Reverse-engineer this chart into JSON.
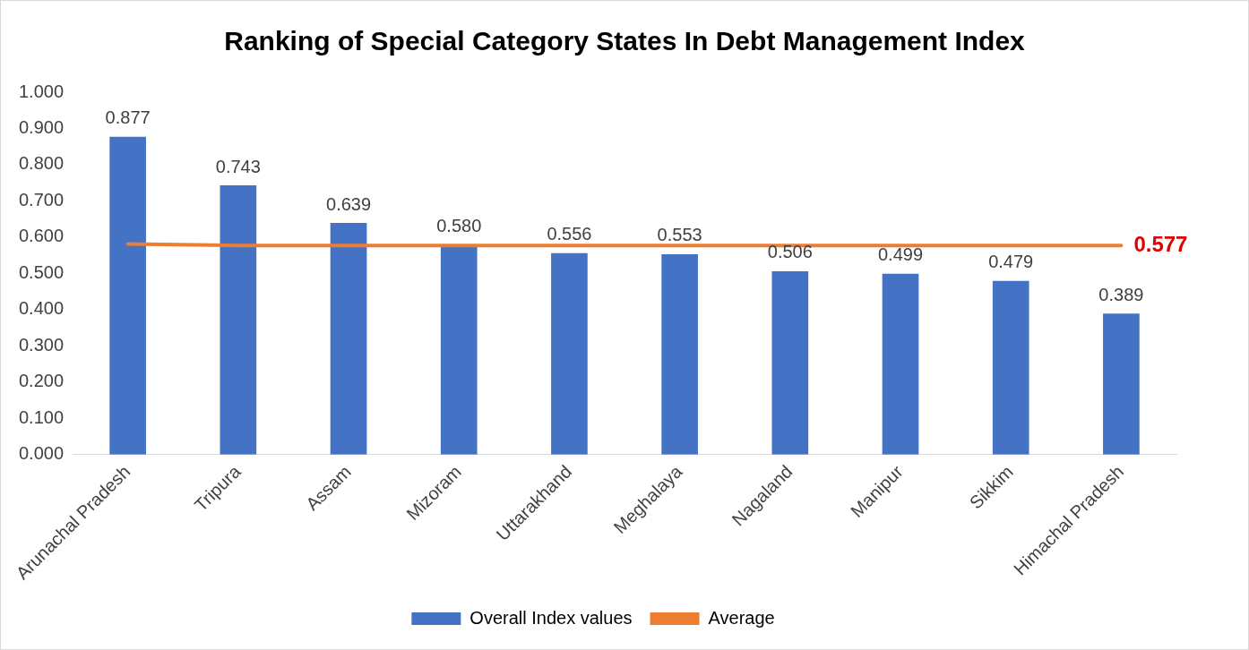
{
  "chart_data": {
    "type": "bar",
    "title": "Ranking of Special Category States In Debt Management Index",
    "categories": [
      "Arunachal Pradesh",
      "Tripura",
      "Assam",
      "Mizoram",
      "Uttarakhand",
      "Meghalaya",
      "Nagaland",
      "Manipur",
      "Sikkim",
      "Himachal Pradesh"
    ],
    "series": [
      {
        "name": "Overall Index values",
        "color": "#4472c4",
        "values": [
          0.877,
          0.743,
          0.639,
          0.58,
          0.556,
          0.553,
          0.506,
          0.499,
          0.479,
          0.389
        ],
        "value_labels": [
          "0.877",
          "0.743",
          "0.639",
          "0.580",
          "0.556",
          "0.553",
          "0.506",
          "0.499",
          "0.479",
          "0.389"
        ]
      },
      {
        "name": "Average",
        "type": "line",
        "color": "#ed7d31",
        "values": [
          0.581,
          0.577,
          0.577,
          0.577,
          0.577,
          0.577,
          0.577,
          0.577,
          0.577,
          0.577
        ],
        "value_labels": [
          null,
          null,
          null,
          null,
          null,
          null,
          null,
          null,
          null,
          "0.577"
        ]
      }
    ],
    "ylim": [
      0,
      1
    ],
    "yticks": [
      {
        "value": 0,
        "label": "0.000"
      },
      {
        "value": 0.1,
        "label": "0.100"
      },
      {
        "value": 0.2,
        "label": "0.200"
      },
      {
        "value": 0.3,
        "label": "0.300"
      },
      {
        "value": 0.4,
        "label": "0.400"
      },
      {
        "value": 0.5,
        "label": "0.500"
      },
      {
        "value": 0.6,
        "label": "0.600"
      },
      {
        "value": 0.7,
        "label": "0.700"
      },
      {
        "value": 0.8,
        "label": "0.800"
      },
      {
        "value": 0.9,
        "label": "0.900"
      },
      {
        "value": 1,
        "label": "1.000"
      }
    ],
    "grid": false,
    "legend": "bottom",
    "marker": "none"
  }
}
